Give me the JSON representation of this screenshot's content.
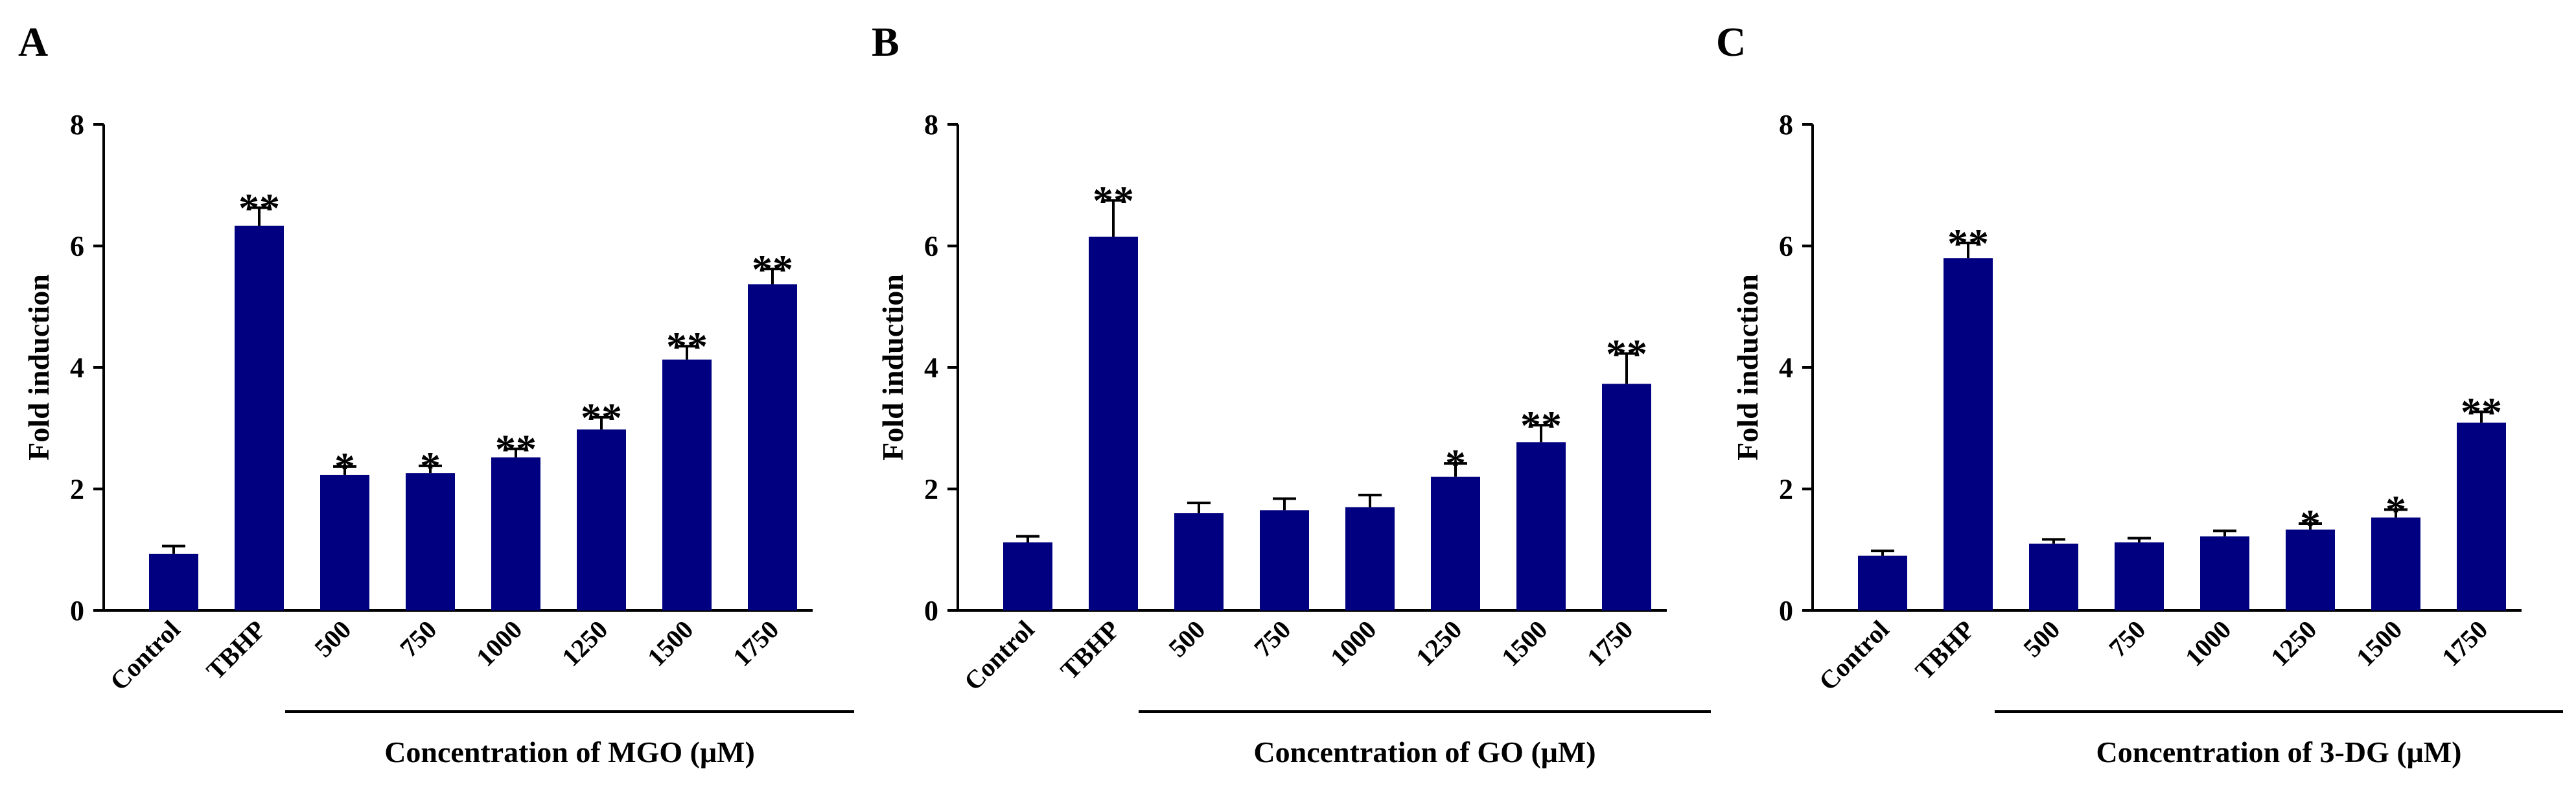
{
  "chart_data": [
    {
      "panel": "A",
      "type": "bar",
      "ylabel": "Fold induction",
      "xlabel": "Concentration of MGO (μM)",
      "ylim": [
        0,
        8
      ],
      "yticks": [
        0,
        2,
        4,
        6,
        8
      ],
      "categories": [
        "Control",
        "TBHP",
        "500",
        "750",
        "1000",
        "1250",
        "1500",
        "1750"
      ],
      "values": [
        0.93,
        6.33,
        2.23,
        2.26,
        2.52,
        2.98,
        4.13,
        5.37
      ],
      "errors": [
        0.13,
        0.3,
        0.14,
        0.12,
        0.14,
        0.2,
        0.22,
        0.25
      ],
      "significance": [
        "",
        "**",
        "*",
        "*",
        "**",
        "**",
        "**",
        "**"
      ],
      "bar_color": "#000080"
    },
    {
      "panel": "B",
      "type": "bar",
      "ylabel": "Fold induction",
      "xlabel": "Concentration of GO (μM)",
      "ylim": [
        0,
        8
      ],
      "yticks": [
        0,
        2,
        4,
        6,
        8
      ],
      "categories": [
        "Control",
        "TBHP",
        "500",
        "750",
        "1000",
        "1250",
        "1500",
        "1750"
      ],
      "values": [
        1.12,
        6.15,
        1.6,
        1.65,
        1.7,
        2.2,
        2.77,
        3.73
      ],
      "errors": [
        0.1,
        0.6,
        0.17,
        0.19,
        0.2,
        0.22,
        0.28,
        0.5
      ],
      "significance": [
        "",
        "**",
        "",
        "",
        "",
        "*",
        "**",
        "**"
      ],
      "bar_color": "#000080"
    },
    {
      "panel": "C",
      "type": "bar",
      "ylabel": "Fold induction",
      "xlabel": "Concentration of 3-DG (μM)",
      "ylim": [
        0,
        8
      ],
      "yticks": [
        0,
        2,
        4,
        6,
        8
      ],
      "categories": [
        "Control",
        "TBHP",
        "500",
        "750",
        "1000",
        "1250",
        "1500",
        "1750"
      ],
      "values": [
        0.9,
        5.8,
        1.1,
        1.12,
        1.22,
        1.33,
        1.53,
        3.09
      ],
      "errors": [
        0.08,
        0.25,
        0.07,
        0.07,
        0.09,
        0.1,
        0.13,
        0.18
      ],
      "significance": [
        "",
        "**",
        "",
        "",
        "",
        "*",
        "*",
        "**"
      ],
      "bar_color": "#000080"
    }
  ]
}
